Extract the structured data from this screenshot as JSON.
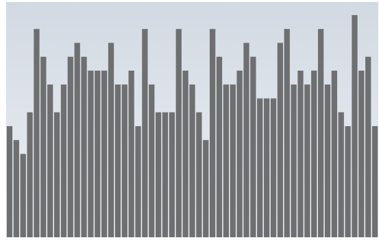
{
  "chart_data": {
    "type": "bar",
    "title": "",
    "xlabel": "",
    "ylabel": "",
    "ylim": [
      0,
      8
    ],
    "grid": false,
    "legend": "none",
    "colors": {
      "bar": "#6e6f71",
      "bar_edge": "#5e5f61",
      "background_top": "#d2d9e2",
      "background_bottom": "#ecf0f4",
      "frame": "#c4cad2"
    },
    "values": [
      4,
      3.5,
      3,
      4.5,
      7.5,
      6.5,
      5.5,
      4.5,
      5.5,
      6.5,
      7,
      6.5,
      6,
      6,
      6,
      7,
      5.5,
      5.5,
      6,
      4,
      7.5,
      5.5,
      4.5,
      4.5,
      4.5,
      7.5,
      6,
      5.5,
      4.5,
      3.5,
      7.5,
      6.5,
      5.5,
      5.5,
      6,
      7,
      6.5,
      5,
      5,
      5,
      7,
      7.5,
      5.5,
      6,
      5.5,
      6,
      7.5,
      5.5,
      6,
      4.5,
      4,
      8,
      6,
      6.5,
      4
    ]
  }
}
